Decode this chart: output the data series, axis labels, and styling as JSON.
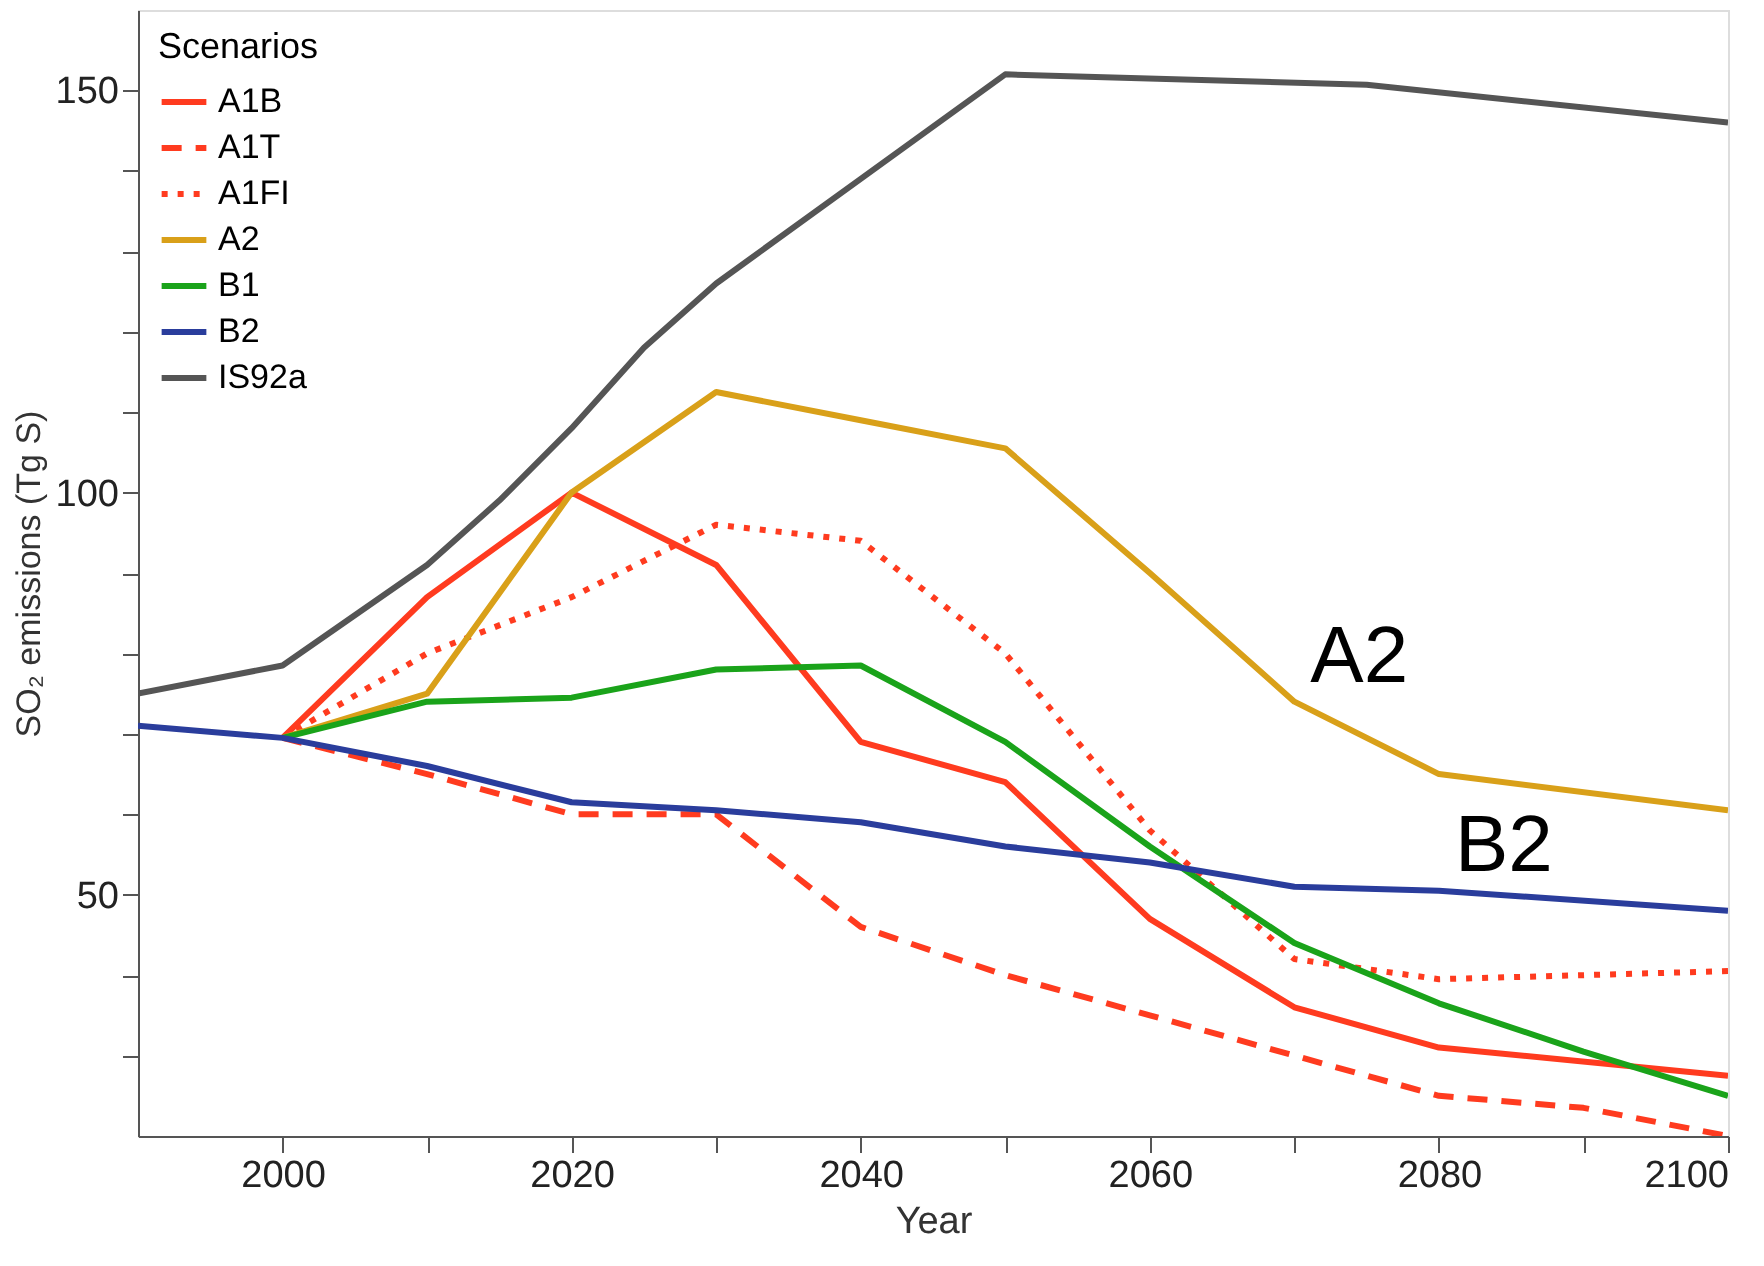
{
  "chart_data": {
    "type": "line",
    "xlabel": "Year",
    "ylabel": "SO₂ emissions (Tg S)",
    "legend_title": "Scenarios",
    "legend": "top left",
    "grid": false,
    "xlim": [
      1990,
      2100
    ],
    "ylim": [
      20,
      160
    ],
    "xticks": [
      2000,
      {
        "value": 2010,
        "label": null
      },
      2020,
      {
        "value": 2030,
        "label": null
      },
      2040,
      {
        "value": 2050,
        "label": null
      },
      2060,
      {
        "value": 2070,
        "label": null
      },
      2080,
      {
        "value": 2090,
        "label": null
      },
      2100
    ],
    "yticks": [
      {
        "value": 30,
        "label": null
      },
      {
        "value": 40,
        "label": null
      },
      50,
      {
        "value": 60,
        "label": null
      },
      {
        "value": 70,
        "label": null
      },
      {
        "value": 80,
        "label": null
      },
      {
        "value": 90,
        "label": null
      },
      100,
      {
        "value": 110,
        "label": null
      },
      {
        "value": 120,
        "label": null
      },
      {
        "value": 130,
        "label": null
      },
      {
        "value": 140,
        "label": null
      },
      150
    ],
    "series": [
      {
        "name": "A1B",
        "color": "#ff3b1f",
        "line_style": "solid",
        "x": [
          2000,
          2010,
          2020,
          2030,
          2040,
          2050,
          2060,
          2070,
          2080,
          2100
        ],
        "values": [
          69.5,
          87,
          100,
          91,
          69,
          64,
          47,
          36,
          31,
          27.5
        ]
      },
      {
        "name": "A1T",
        "color": "#ff3b1f",
        "line_style": "dashed",
        "x": [
          2000,
          2010,
          2020,
          2030,
          2040,
          2050,
          2060,
          2070,
          2080,
          2090,
          2100
        ],
        "values": [
          69.5,
          65,
          60,
          60,
          46,
          40,
          35,
          30,
          25,
          23.5,
          20
        ]
      },
      {
        "name": "A1FI",
        "color": "#ff3b1f",
        "line_style": "dotted",
        "x": [
          2000,
          2010,
          2020,
          2030,
          2040,
          2050,
          2060,
          2070,
          2080,
          2100
        ],
        "values": [
          69.5,
          80,
          87,
          96,
          94,
          80,
          58,
          42,
          39.5,
          40.5
        ]
      },
      {
        "name": "A2",
        "color": "#d9a019",
        "line_style": "solid",
        "x": [
          2000,
          2010,
          2020,
          2030,
          2040,
          2050,
          2060,
          2070,
          2080,
          2100
        ],
        "values": [
          69.5,
          75,
          100,
          112.5,
          109,
          105.5,
          90,
          74,
          65,
          60.5
        ]
      },
      {
        "name": "B1",
        "color": "#1aa31a",
        "line_style": "solid",
        "x": [
          2000,
          2010,
          2020,
          2030,
          2040,
          2050,
          2060,
          2070,
          2080,
          2090,
          2100
        ],
        "values": [
          69.5,
          74,
          74.5,
          78,
          78.5,
          69,
          56,
          44,
          36.5,
          30.5,
          25
        ]
      },
      {
        "name": "B2",
        "color": "#2a3d9c",
        "line_style": "solid",
        "x": [
          1990,
          2000,
          2010,
          2020,
          2030,
          2040,
          2050,
          2060,
          2070,
          2080,
          2100
        ],
        "values": [
          71,
          69.5,
          66,
          61.5,
          60.5,
          59,
          56,
          54,
          51,
          50.5,
          48
        ]
      },
      {
        "name": "IS92a",
        "color": "#555555",
        "line_style": "solid",
        "x": [
          1990,
          2000,
          2010,
          2015,
          2020,
          2025,
          2030,
          2040,
          2050,
          2075,
          2100
        ],
        "values": [
          75,
          78.5,
          91,
          99,
          108,
          118,
          126,
          139,
          152,
          150.7,
          146
        ]
      }
    ],
    "annotations": [
      {
        "text": "A2",
        "x": 2070,
        "y": 74
      },
      {
        "text": "B2",
        "x": 2080,
        "y": 50.5
      }
    ]
  }
}
